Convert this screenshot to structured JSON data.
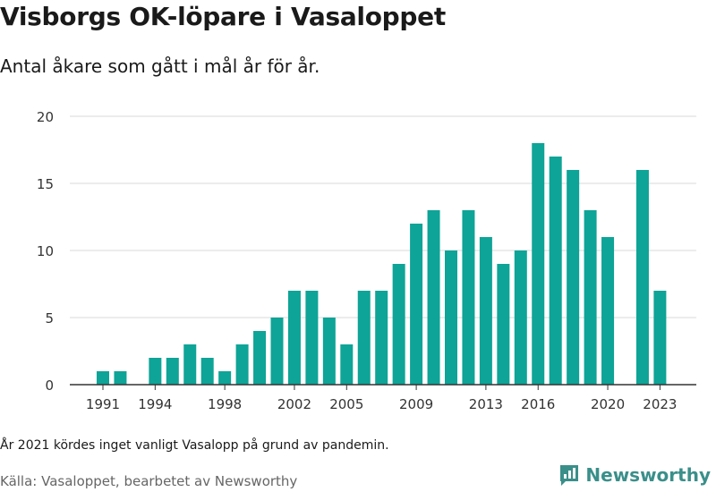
{
  "title": "Visborgs OK-löpare i Vasaloppet",
  "subtitle": "Antal åkare som gått i mål år för år.",
  "note": "År 2021 kördes inget vanligt Vasalopp på grund av pandemin.",
  "source": "Källa: Vasaloppet, bearbetet av Newsworthy",
  "logo_text": "Newsworthy",
  "colors": {
    "bar": "#0ea497",
    "grid": "#d9d9d9",
    "axis": "#333333",
    "logo": "#3a8f8a"
  },
  "chart_data": {
    "type": "bar",
    "title": "Visborgs OK-löpare i Vasaloppet",
    "subtitle": "Antal åkare som gått i mål år för år.",
    "xlabel": "",
    "ylabel": "",
    "ylim": [
      0,
      20
    ],
    "yticks": [
      0,
      5,
      10,
      15,
      20
    ],
    "xtick_labels": [
      "1991",
      "1994",
      "1998",
      "2002",
      "2005",
      "2009",
      "2013",
      "2016",
      "2020",
      "2023"
    ],
    "grid": true,
    "categories": [
      "1991",
      "1992",
      "1993",
      "1994",
      "1995",
      "1996",
      "1997",
      "1998",
      "1999",
      "2000",
      "2001",
      "2002",
      "2003",
      "2004",
      "2005",
      "2006",
      "2007",
      "2008",
      "2009",
      "2010",
      "2011",
      "2012",
      "2013",
      "2014",
      "2015",
      "2016",
      "2017",
      "2018",
      "2019",
      "2020",
      "2021",
      "2022",
      "2023"
    ],
    "values": [
      1,
      1,
      null,
      2,
      2,
      3,
      2,
      1,
      3,
      4,
      5,
      7,
      7,
      5,
      3,
      7,
      7,
      9,
      12,
      13,
      10,
      13,
      11,
      9,
      10,
      18,
      17,
      16,
      13,
      11,
      null,
      16,
      7
    ]
  }
}
